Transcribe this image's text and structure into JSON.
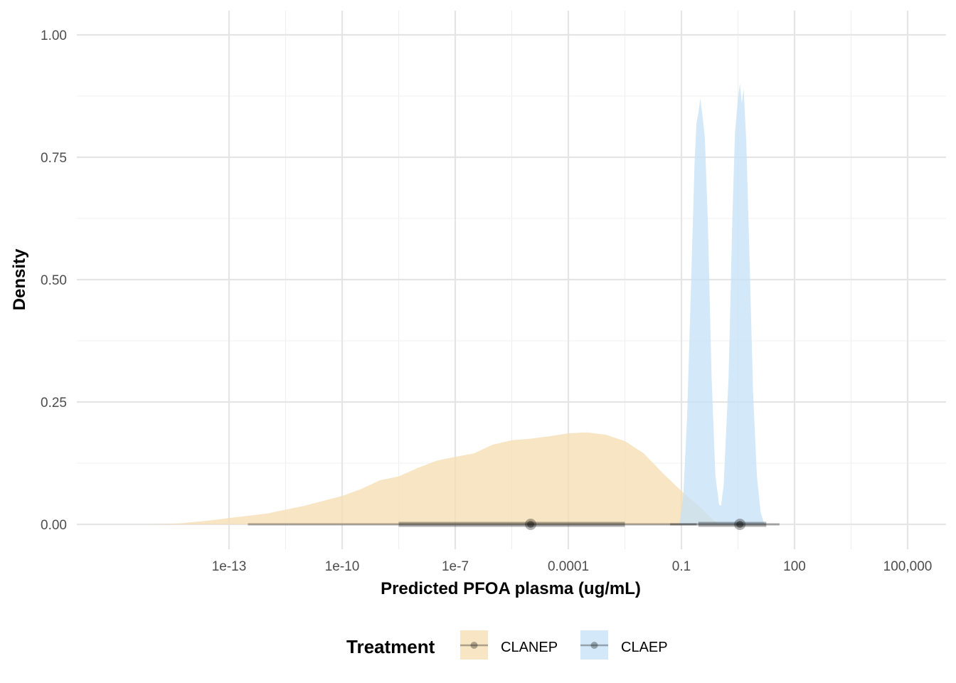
{
  "chart_data": {
    "type": "area",
    "title": "",
    "xlabel": "Predicted PFOA plasma (ug/mL)",
    "ylabel": "Density",
    "x_scale": "log10",
    "xlim_log10": [
      -15.2,
      6.3
    ],
    "ylim": [
      0,
      1.0
    ],
    "grid": true,
    "legend_position": "bottom",
    "legend_title": "Treatment",
    "x_ticks": [
      {
        "log10": -13,
        "label": "1e-13"
      },
      {
        "log10": -10,
        "label": "1e-10"
      },
      {
        "log10": -7,
        "label": "1e-7"
      },
      {
        "log10": -4,
        "label": "0.0001"
      },
      {
        "log10": -1,
        "label": "0.1"
      },
      {
        "log10": 2,
        "label": "100"
      },
      {
        "log10": 5,
        "label": "100,000"
      }
    ],
    "y_ticks": [
      {
        "value": 0,
        "label": "0.00"
      },
      {
        "value": 0.25,
        "label": "0.25"
      },
      {
        "value": 0.5,
        "label": "0.50"
      },
      {
        "value": 0.75,
        "label": "0.75"
      },
      {
        "value": 1.0,
        "label": "1.00"
      }
    ],
    "series": [
      {
        "name": "CLANEP",
        "color": "#F5DEB3",
        "density_log10x": [
          [
            -15.0,
            0.0
          ],
          [
            -14.3,
            0.002
          ],
          [
            -13.5,
            0.008
          ],
          [
            -13.0,
            0.013
          ],
          [
            -12.0,
            0.022
          ],
          [
            -11.0,
            0.038
          ],
          [
            -10.5,
            0.048
          ],
          [
            -10.0,
            0.058
          ],
          [
            -9.5,
            0.072
          ],
          [
            -9.0,
            0.09
          ],
          [
            -8.5,
            0.098
          ],
          [
            -8.0,
            0.115
          ],
          [
            -7.5,
            0.13
          ],
          [
            -7.0,
            0.138
          ],
          [
            -6.5,
            0.145
          ],
          [
            -6.0,
            0.163
          ],
          [
            -5.5,
            0.172
          ],
          [
            -5.0,
            0.175
          ],
          [
            -4.5,
            0.18
          ],
          [
            -4.0,
            0.186
          ],
          [
            -3.5,
            0.188
          ],
          [
            -3.0,
            0.183
          ],
          [
            -2.5,
            0.17
          ],
          [
            -2.0,
            0.145
          ],
          [
            -1.5,
            0.105
          ],
          [
            -1.0,
            0.068
          ],
          [
            -0.5,
            0.035
          ],
          [
            -0.2,
            0.012
          ],
          [
            0.0,
            0.0
          ]
        ],
        "interval": {
          "median_log10": -5.0,
          "inner_log10": [
            -8.5,
            -2.5
          ],
          "outer_log10": [
            -12.5,
            -0.6
          ]
        }
      },
      {
        "name": "CLAEP",
        "color": "#C6E2F6",
        "density_log10x": [
          [
            -1.05,
            0.0
          ],
          [
            -0.95,
            0.06
          ],
          [
            -0.85,
            0.22
          ],
          [
            -0.75,
            0.48
          ],
          [
            -0.65,
            0.74
          ],
          [
            -0.6,
            0.82
          ],
          [
            -0.55,
            0.84
          ],
          [
            -0.5,
            0.87
          ],
          [
            -0.45,
            0.84
          ],
          [
            -0.38,
            0.79
          ],
          [
            -0.3,
            0.62
          ],
          [
            -0.2,
            0.3
          ],
          [
            -0.1,
            0.1
          ],
          [
            0.0,
            0.04
          ],
          [
            0.05,
            0.038
          ],
          [
            0.12,
            0.08
          ],
          [
            0.25,
            0.3
          ],
          [
            0.35,
            0.62
          ],
          [
            0.42,
            0.8
          ],
          [
            0.5,
            0.87
          ],
          [
            0.55,
            0.9
          ],
          [
            0.6,
            0.86
          ],
          [
            0.65,
            0.89
          ],
          [
            0.72,
            0.78
          ],
          [
            0.8,
            0.56
          ],
          [
            0.9,
            0.27
          ],
          [
            1.0,
            0.1
          ],
          [
            1.1,
            0.025
          ],
          [
            1.2,
            0.0
          ]
        ],
        "interval": {
          "median_log10": 0.55,
          "inner_log10": [
            -0.55,
            1.25
          ],
          "outer_log10": [
            -1.3,
            1.6
          ]
        }
      }
    ]
  }
}
